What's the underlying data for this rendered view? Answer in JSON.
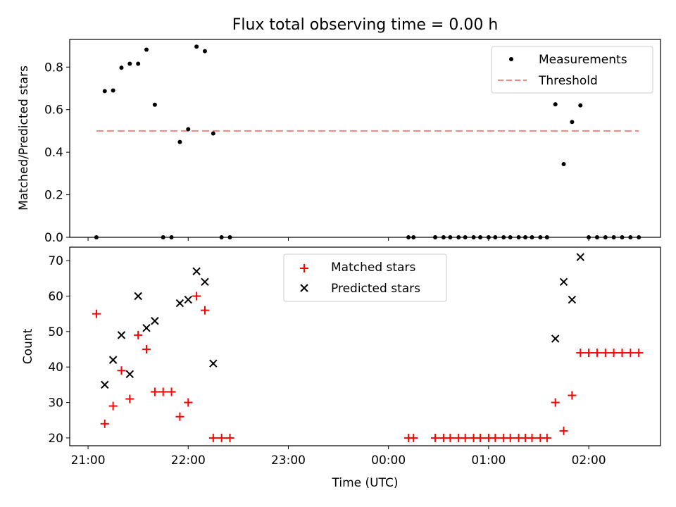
{
  "title": "Flux total observing time = 0.00 h",
  "chart_data": [
    {
      "type": "scatter",
      "ylabel": "Matched/Predicted stars",
      "ylim": [
        0,
        0.93
      ],
      "yticks": [
        "0.0",
        "0.2",
        "0.4",
        "0.6",
        "0.8"
      ],
      "ytick_values": [
        0,
        0.2,
        0.4,
        0.6,
        0.8
      ],
      "legend": {
        "placement": "top-right",
        "entries": [
          "Measurements",
          "Threshold"
        ]
      },
      "threshold": {
        "name": "Threshold",
        "y": 0.5,
        "x_start": "21:05",
        "x_end": "02:30",
        "color": "#ff8080"
      },
      "series": [
        {
          "name": "Measurements",
          "color": "#000000",
          "points": [
            [
              "21:05",
              0.0
            ],
            [
              "21:10",
              0.687
            ],
            [
              "21:15",
              0.69
            ],
            [
              "21:20",
              0.797
            ],
            [
              "21:25",
              0.816
            ],
            [
              "21:30",
              0.816
            ],
            [
              "21:35",
              0.882
            ],
            [
              "21:40",
              0.623
            ],
            [
              "21:45",
              0.0
            ],
            [
              "21:50",
              0.0
            ],
            [
              "21:55",
              0.448
            ],
            [
              "22:00",
              0.508
            ],
            [
              "22:05",
              0.896
            ],
            [
              "22:10",
              0.875
            ],
            [
              "22:15",
              0.488
            ],
            [
              "22:20",
              0.0
            ],
            [
              "22:25",
              0.0
            ],
            [
              "00:12",
              0.0
            ],
            [
              "00:15",
              0.0
            ],
            [
              "00:28",
              0.0
            ],
            [
              "00:33",
              0.0
            ],
            [
              "00:37",
              0.0
            ],
            [
              "00:42",
              0.0
            ],
            [
              "00:46",
              0.0
            ],
            [
              "00:51",
              0.0
            ],
            [
              "00:55",
              0.0
            ],
            [
              "01:00",
              0.0
            ],
            [
              "01:04",
              0.0
            ],
            [
              "01:09",
              0.0
            ],
            [
              "01:13",
              0.0
            ],
            [
              "01:18",
              0.0
            ],
            [
              "01:22",
              0.0
            ],
            [
              "01:26",
              0.0
            ],
            [
              "01:31",
              0.0
            ],
            [
              "01:35",
              0.0
            ],
            [
              "01:40",
              0.625
            ],
            [
              "01:45",
              0.344
            ],
            [
              "01:50",
              0.542
            ],
            [
              "01:55",
              0.62
            ],
            [
              "02:00",
              0.0
            ],
            [
              "02:05",
              0.0
            ],
            [
              "02:10",
              0.0
            ],
            [
              "02:15",
              0.0
            ],
            [
              "02:20",
              0.0
            ],
            [
              "02:25",
              0.0
            ],
            [
              "02:30",
              0.0
            ]
          ]
        }
      ]
    },
    {
      "type": "scatter",
      "xlabel": "Time (UTC)",
      "ylabel": "Count",
      "ylim": [
        17.8,
        73.8
      ],
      "yticks": [
        "20",
        "30",
        "40",
        "50",
        "60",
        "70"
      ],
      "ytick_values": [
        20,
        30,
        40,
        50,
        60,
        70
      ],
      "xticks": [
        "21:00",
        "22:00",
        "23:00",
        "00:00",
        "01:00",
        "02:00"
      ],
      "xtick_values": [
        "21:00",
        "22:00",
        "23:00",
        "00:00",
        "01:00",
        "02:00"
      ],
      "legend": {
        "placement": "upper center",
        "entries": [
          "Matched stars",
          "Predicted stars"
        ]
      },
      "series": [
        {
          "name": "Matched stars",
          "marker": "plus",
          "color": "#ff0000",
          "points": [
            [
              "21:05",
              55
            ],
            [
              "21:10",
              24
            ],
            [
              "21:15",
              29
            ],
            [
              "21:20",
              39
            ],
            [
              "21:25",
              31
            ],
            [
              "21:30",
              49
            ],
            [
              "21:35",
              45
            ],
            [
              "21:40",
              33
            ],
            [
              "21:45",
              33
            ],
            [
              "21:50",
              33
            ],
            [
              "21:55",
              26
            ],
            [
              "22:00",
              30
            ],
            [
              "22:05",
              60
            ],
            [
              "22:10",
              56
            ],
            [
              "22:15",
              20
            ],
            [
              "22:20",
              20
            ],
            [
              "22:25",
              20
            ],
            [
              "00:12",
              20
            ],
            [
              "00:15",
              20
            ],
            [
              "00:28",
              20
            ],
            [
              "00:33",
              20
            ],
            [
              "00:37",
              20
            ],
            [
              "00:42",
              20
            ],
            [
              "00:46",
              20
            ],
            [
              "00:51",
              20
            ],
            [
              "00:55",
              20
            ],
            [
              "01:00",
              20
            ],
            [
              "01:04",
              20
            ],
            [
              "01:09",
              20
            ],
            [
              "01:13",
              20
            ],
            [
              "01:18",
              20
            ],
            [
              "01:22",
              20
            ],
            [
              "01:26",
              20
            ],
            [
              "01:31",
              20
            ],
            [
              "01:35",
              20
            ],
            [
              "01:40",
              30
            ],
            [
              "01:45",
              22
            ],
            [
              "01:50",
              32
            ],
            [
              "01:55",
              44
            ],
            [
              "02:00",
              44
            ],
            [
              "02:05",
              44
            ],
            [
              "02:10",
              44
            ],
            [
              "02:15",
              44
            ],
            [
              "02:20",
              44
            ],
            [
              "02:25",
              44
            ],
            [
              "02:30",
              44
            ]
          ]
        },
        {
          "name": "Predicted stars",
          "marker": "x",
          "color": "#000000",
          "points": [
            [
              "21:10",
              35
            ],
            [
              "21:15",
              42
            ],
            [
              "21:20",
              49
            ],
            [
              "21:25",
              38
            ],
            [
              "21:30",
              60
            ],
            [
              "21:35",
              51
            ],
            [
              "21:40",
              53
            ],
            [
              "21:55",
              58
            ],
            [
              "22:00",
              59
            ],
            [
              "22:05",
              67
            ],
            [
              "22:10",
              64
            ],
            [
              "22:15",
              41
            ],
            [
              "01:40",
              48
            ],
            [
              "01:45",
              64
            ],
            [
              "01:50",
              59
            ],
            [
              "01:55",
              71
            ]
          ]
        }
      ]
    }
  ]
}
